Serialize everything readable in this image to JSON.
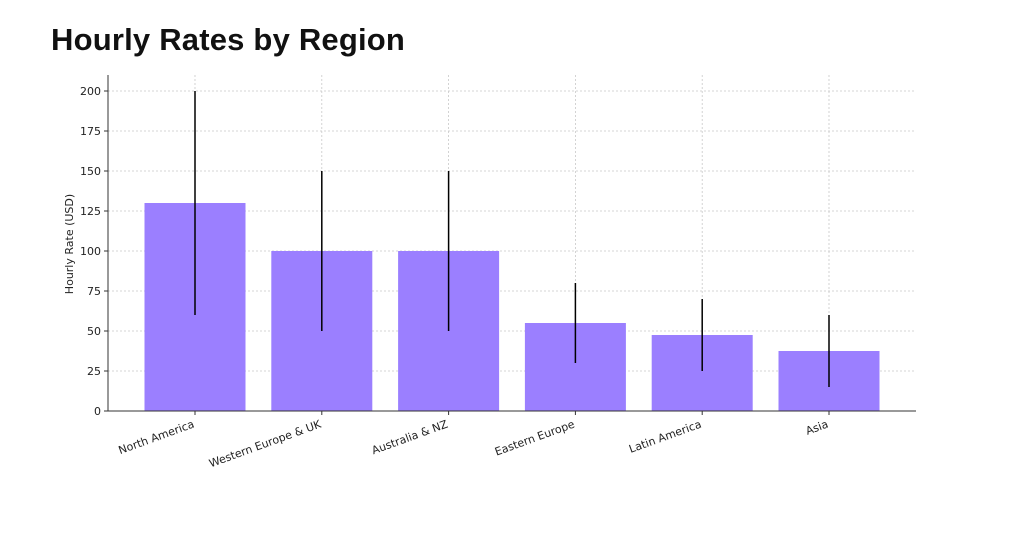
{
  "title": "Hourly Rates by Region",
  "colors": {
    "bar": "#9b7fff",
    "error_bar": "#000000",
    "grid": "#c8c8c8",
    "axis": "#333333"
  },
  "chart_data": {
    "type": "bar",
    "categories": [
      "North America",
      "Western Europe & UK",
      "Australia & NZ",
      "Eastern Europe",
      "Latin America",
      "Asia"
    ],
    "values": [
      130,
      100,
      100,
      55,
      47.5,
      37.5
    ],
    "error_low": [
      60,
      50,
      50,
      30,
      25,
      15
    ],
    "error_high": [
      200,
      150,
      150,
      80,
      70,
      60
    ],
    "ylabel": "Hourly Rate (USD)",
    "xlabel": "",
    "ylim": [
      0,
      210
    ],
    "yticks": [
      0,
      25,
      50,
      75,
      100,
      125,
      150,
      175,
      200
    ],
    "grid": true
  }
}
